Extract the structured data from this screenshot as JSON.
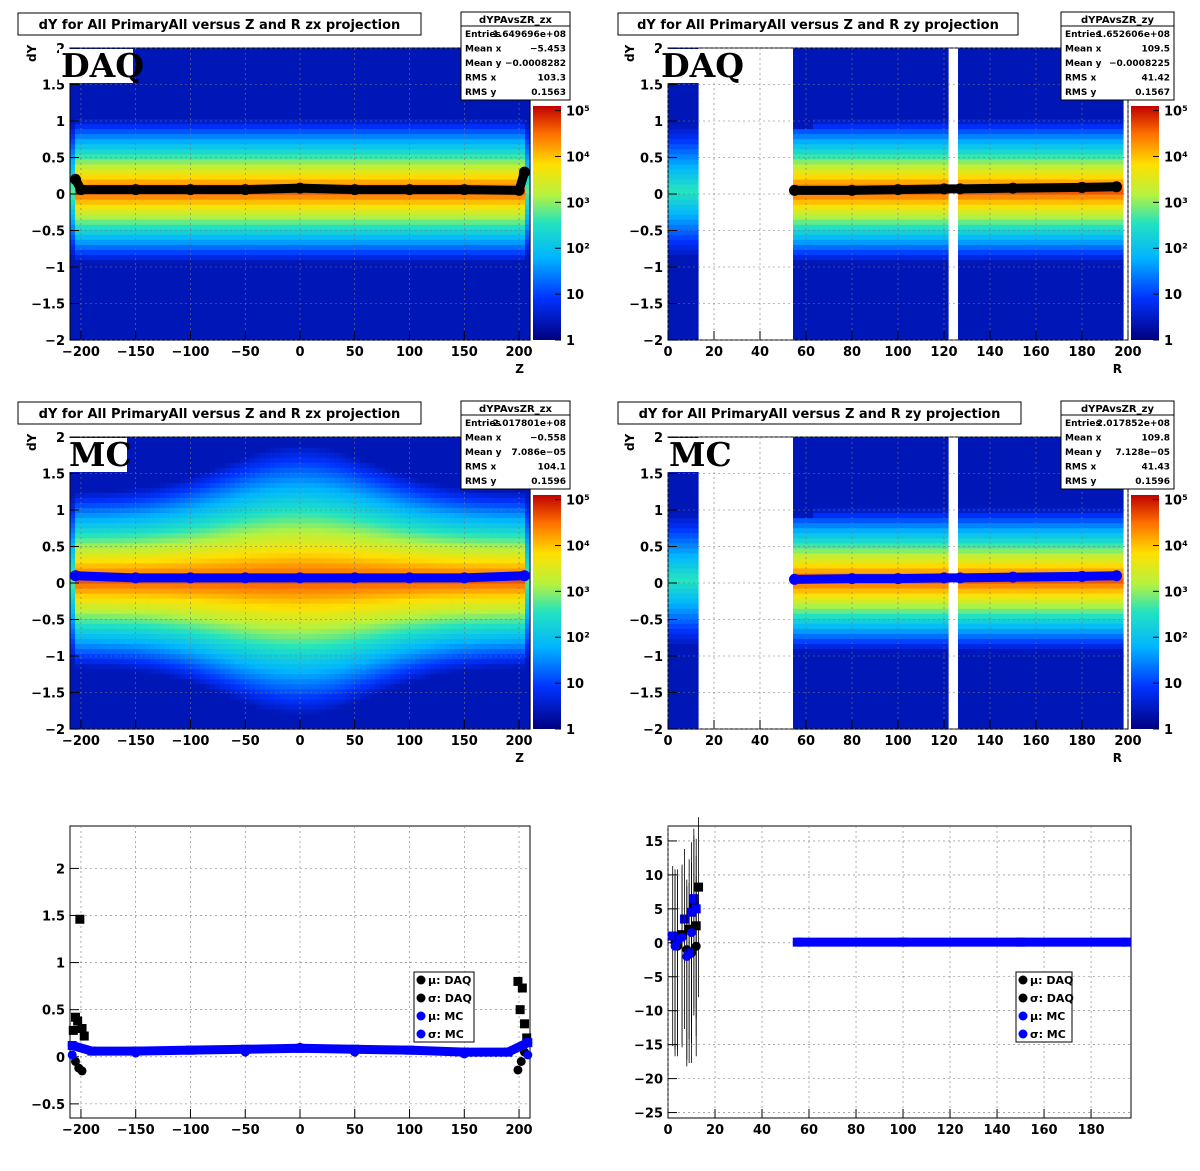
{
  "colors": {
    "daq": "#000000",
    "mc": "#0000ff"
  },
  "chart_data": [
    {
      "type": "heatmap",
      "title": "dY for All PrimaryAll versus Z and R zx projection",
      "tag": "DAQ",
      "xlabel": "Z",
      "ylabel": "dY",
      "xlim": [
        -210,
        210
      ],
      "ylim": [
        -2,
        2
      ],
      "xticks": [
        "−200",
        "−150",
        "−100",
        "−50",
        "0",
        "50",
        "100",
        "150",
        "200"
      ],
      "xtick_values": [
        -200,
        -150,
        -100,
        -50,
        0,
        50,
        100,
        150,
        200
      ],
      "yticks": [
        "−2",
        "−1.5",
        "−1",
        "−0.5",
        "0",
        "0.5",
        "1",
        "1.5",
        "2"
      ],
      "ytick_values": [
        -2,
        -1.5,
        -1,
        -0.5,
        0,
        0.5,
        1,
        1.5,
        2
      ],
      "zscale": "log",
      "zticks": [
        "1",
        "10",
        "10²",
        "10³",
        "10⁴",
        "10⁵"
      ],
      "grid": true,
      "stats": {
        "name": "dYPAvsZR_zx",
        "rows": [
          [
            "Entries",
            "1.649696e+08"
          ],
          [
            "Mean x",
            "−5.453"
          ],
          [
            "Mean y",
            "−0.0008282"
          ],
          [
            "RMS x",
            "103.3"
          ],
          [
            "RMS y",
            "0.1563"
          ]
        ]
      },
      "profile": {
        "series_name": "DAQ",
        "x": [
          -205,
          -200,
          -150,
          -100,
          -50,
          0,
          50,
          100,
          150,
          200,
          205
        ],
        "y": [
          0.2,
          0.06,
          0.06,
          0.06,
          0.06,
          0.08,
          0.06,
          0.06,
          0.06,
          0.05,
          0.3
        ]
      }
    },
    {
      "type": "heatmap",
      "title": "dY for All PrimaryAll versus Z and R zy projection",
      "tag": "DAQ",
      "xlabel": "R",
      "ylabel": "dY",
      "xlim": [
        0,
        200
      ],
      "ylim": [
        -2,
        2
      ],
      "xticks": [
        "0",
        "20",
        "40",
        "60",
        "80",
        "100",
        "120",
        "140",
        "160",
        "180",
        "200"
      ],
      "xtick_values": [
        0,
        20,
        40,
        60,
        80,
        100,
        120,
        140,
        160,
        180,
        200
      ],
      "yticks": [
        "−2",
        "−1.5",
        "−1",
        "−0.5",
        "0",
        "0.5",
        "1",
        "1.5",
        "2"
      ],
      "ytick_values": [
        -2,
        -1.5,
        -1,
        -0.5,
        0,
        0.5,
        1,
        1.5,
        2
      ],
      "zscale": "log",
      "zticks": [
        "1",
        "10",
        "10²",
        "10³",
        "10⁴",
        "10⁵"
      ],
      "grid": true,
      "stats": {
        "name": "dYPAvsZR_zy",
        "rows": [
          [
            "Entries",
            "1.652606e+08"
          ],
          [
            "Mean x",
            "109.5"
          ],
          [
            "Mean y",
            "−0.0008225"
          ],
          [
            "RMS x",
            "41.42"
          ],
          [
            "RMS y",
            "0.1567"
          ]
        ]
      },
      "profile": {
        "series_name": "DAQ",
        "x": [
          55,
          80,
          100,
          120,
          127,
          150,
          180,
          195
        ],
        "y": [
          0.05,
          0.05,
          0.06,
          0.07,
          0.07,
          0.08,
          0.09,
          0.1
        ]
      }
    },
    {
      "type": "heatmap",
      "title": "dY for All PrimaryAll versus Z and R zx projection",
      "tag": "MC",
      "xlabel": "Z",
      "ylabel": "dY",
      "xlim": [
        -210,
        210
      ],
      "ylim": [
        -2,
        2
      ],
      "xticks": [
        "−200",
        "−150",
        "−100",
        "−50",
        "0",
        "50",
        "100",
        "150",
        "200"
      ],
      "xtick_values": [
        -200,
        -150,
        -100,
        -50,
        0,
        50,
        100,
        150,
        200
      ],
      "yticks": [
        "−2",
        "−1.5",
        "−1",
        "−0.5",
        "0",
        "0.5",
        "1",
        "1.5",
        "2"
      ],
      "ytick_values": [
        -2,
        -1.5,
        -1,
        -0.5,
        0,
        0.5,
        1,
        1.5,
        2
      ],
      "zscale": "log",
      "zticks": [
        "1",
        "10",
        "10²",
        "10³",
        "10⁴",
        "10⁵"
      ],
      "grid": true,
      "stats": {
        "name": "dYPAvsZR_zx",
        "rows": [
          [
            "Entries",
            "2.017801e+08"
          ],
          [
            "Mean x",
            "−0.558"
          ],
          [
            "Mean y",
            "7.086e−05"
          ],
          [
            "RMS x",
            "104.1"
          ],
          [
            "RMS y",
            "0.1596"
          ]
        ]
      },
      "profile": {
        "series_name": "MC",
        "x": [
          -205,
          -150,
          -100,
          -50,
          0,
          50,
          100,
          150,
          205
        ],
        "y": [
          0.1,
          0.07,
          0.07,
          0.07,
          0.07,
          0.07,
          0.07,
          0.07,
          0.1
        ]
      }
    },
    {
      "type": "heatmap",
      "title": "dY for All PrimaryAll versus Z and R zy projection",
      "tag": "MC",
      "xlabel": "R",
      "ylabel": "dY",
      "xlim": [
        0,
        200
      ],
      "ylim": [
        -2,
        2
      ],
      "xticks": [
        "0",
        "20",
        "40",
        "60",
        "80",
        "100",
        "120",
        "140",
        "160",
        "180",
        "200"
      ],
      "xtick_values": [
        0,
        20,
        40,
        60,
        80,
        100,
        120,
        140,
        160,
        180,
        200
      ],
      "yticks": [
        "−2",
        "−1.5",
        "−1",
        "−0.5",
        "0",
        "0.5",
        "1",
        "1.5",
        "2"
      ],
      "ytick_values": [
        -2,
        -1.5,
        -1,
        -0.5,
        0,
        0.5,
        1,
        1.5,
        2
      ],
      "zscale": "log",
      "zticks": [
        "1",
        "10",
        "10²",
        "10³",
        "10⁴",
        "10⁵"
      ],
      "grid": true,
      "stats": {
        "name": "dYPAvsZR_zy",
        "rows": [
          [
            "Entries",
            "2.017852e+08"
          ],
          [
            "Mean x",
            "109.8"
          ],
          [
            "Mean y",
            "7.128e−05"
          ],
          [
            "RMS x",
            "41.43"
          ],
          [
            "RMS y",
            "0.1596"
          ]
        ]
      },
      "profile": {
        "series_name": "MC",
        "x": [
          55,
          80,
          100,
          120,
          127,
          150,
          180,
          195
        ],
        "y": [
          0.05,
          0.06,
          0.06,
          0.07,
          0.07,
          0.08,
          0.09,
          0.1
        ]
      }
    },
    {
      "type": "scatter",
      "xlim": [
        -210,
        210
      ],
      "ylim": [
        -0.65,
        2.45
      ],
      "xticks": [
        "−200",
        "−150",
        "−100",
        "−50",
        "0",
        "50",
        "100",
        "150",
        "200"
      ],
      "xtick_values": [
        -200,
        -150,
        -100,
        -50,
        0,
        50,
        100,
        150,
        200
      ],
      "yticks": [
        "−0.5",
        "0",
        "0.5",
        "1",
        "1.5",
        "2"
      ],
      "ytick_values": [
        -0.5,
        0,
        0.5,
        1,
        1.5,
        2
      ],
      "grid": true,
      "legend": [
        "μ: DAQ",
        "σ: DAQ",
        "μ: MC",
        "σ: MC"
      ],
      "series": [
        {
          "name": "μ: DAQ",
          "color": "#000000",
          "x": [
            -207,
            -205,
            -203,
            -201,
            -199,
            -197,
            199,
            201,
            203,
            205,
            207
          ],
          "y": [
            0.28,
            0.42,
            0.38,
            1.46,
            0.3,
            0.22,
            0.8,
            0.5,
            0.73,
            0.35,
            0.2
          ]
        },
        {
          "name": "σ: DAQ",
          "color": "#000000",
          "x": [
            -205,
            -202,
            -199,
            0,
            199,
            202,
            205
          ],
          "y": [
            -0.05,
            -0.12,
            -0.15,
            0.1,
            -0.14,
            -0.05,
            0.05
          ]
        },
        {
          "name": "μ: MC",
          "color": "#0000ff",
          "x": [
            -208,
            -190,
            -150,
            -100,
            -50,
            0,
            50,
            100,
            150,
            190,
            208
          ],
          "y": [
            0.12,
            0.06,
            0.06,
            0.07,
            0.08,
            0.09,
            0.08,
            0.07,
            0.05,
            0.05,
            0.15
          ]
        },
        {
          "name": "σ: MC",
          "color": "#0000ff",
          "x": [
            -208,
            -150,
            -50,
            50,
            150,
            208
          ],
          "y": [
            0.02,
            0.04,
            0.05,
            0.05,
            0.03,
            0.02
          ]
        }
      ]
    },
    {
      "type": "scatter",
      "xlim": [
        0,
        197
      ],
      "ylim": [
        -25.8,
        17.2
      ],
      "xticks": [
        "0",
        "20",
        "40",
        "60",
        "80",
        "100",
        "120",
        "140",
        "160",
        "180"
      ],
      "xtick_values": [
        0,
        20,
        40,
        60,
        80,
        100,
        120,
        140,
        160,
        180
      ],
      "yticks": [
        "−25",
        "−20",
        "−15",
        "−10",
        "−5",
        "0",
        "5",
        "10",
        "15"
      ],
      "ytick_values": [
        -25,
        -20,
        -15,
        -10,
        -5,
        0,
        5,
        10,
        15
      ],
      "grid": true,
      "legend": [
        "μ: DAQ",
        "σ: DAQ",
        "μ: MC",
        "σ: MC"
      ],
      "series": [
        {
          "name": "μ: DAQ",
          "color": "#000000",
          "x": [
            3,
            6,
            9,
            11,
            12,
            13
          ],
          "y": [
            0.5,
            1.2,
            2.0,
            5.5,
            2.5,
            8.2
          ]
        },
        {
          "name": "σ: DAQ",
          "color": "#000000",
          "x": [
            4,
            8,
            10,
            12
          ],
          "y": [
            -0.5,
            -1.0,
            -1.5,
            -0.5
          ]
        },
        {
          "name": "μ: MC",
          "color": "#0000ff",
          "x": [
            2,
            4,
            7,
            9,
            10,
            11,
            12,
            55,
            100,
            150,
            195
          ],
          "y": [
            1.0,
            0.5,
            3.5,
            -1.5,
            4.5,
            6.5,
            5.0,
            0.1,
            0.1,
            0.1,
            0.1
          ]
        },
        {
          "name": "σ: MC",
          "color": "#0000ff",
          "x": [
            3,
            6,
            8,
            10
          ],
          "y": [
            -0.5,
            0.8,
            -2.0,
            1.5
          ]
        }
      ]
    }
  ]
}
